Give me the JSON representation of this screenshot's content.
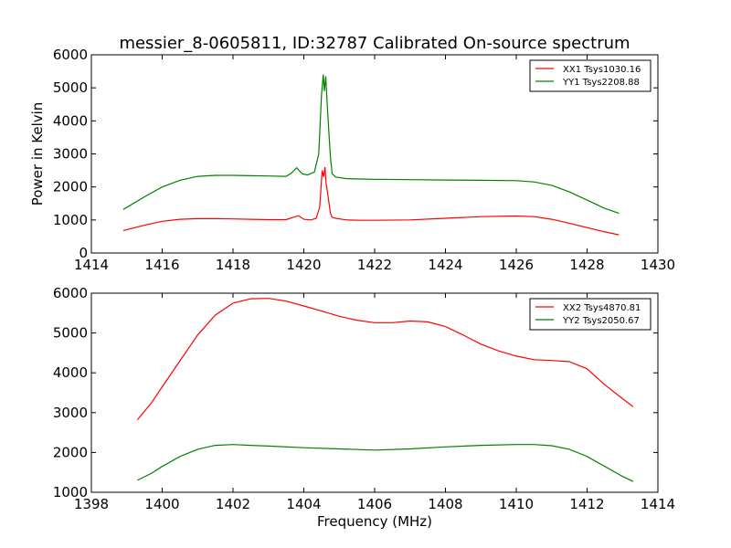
{
  "title": "messier_8-0605811, ID:32787 Calibrated On-source spectrum",
  "chart_data": [
    {
      "type": "line",
      "ylabel": "Power in Kelvin",
      "xlabel": "",
      "xlim": [
        1414,
        1430
      ],
      "ylim": [
        0,
        6000
      ],
      "xticks": [
        "1414",
        "1416",
        "1418",
        "1420",
        "1422",
        "1424",
        "1426",
        "1428",
        "1430"
      ],
      "yticks": [
        "0",
        "1000",
        "2000",
        "3000",
        "4000",
        "5000",
        "6000"
      ],
      "legend_position": "top-right",
      "series": [
        {
          "name": "XX1 Tsys1030.16",
          "color": "#ff0000",
          "x": [
            1414.9,
            1415.5,
            1416.0,
            1416.5,
            1417.0,
            1417.5,
            1418.0,
            1418.5,
            1419.0,
            1419.5,
            1419.7,
            1419.85,
            1420.0,
            1420.2,
            1420.35,
            1420.45,
            1420.52,
            1420.56,
            1420.6,
            1420.63,
            1420.66,
            1420.7,
            1420.75,
            1420.8,
            1420.9,
            1421.2,
            1421.6,
            1422.0,
            1423.0,
            1424.0,
            1425.0,
            1426.0,
            1426.5,
            1427.0,
            1427.5,
            1428.0,
            1428.5,
            1428.9
          ],
          "y": [
            680,
            840,
            960,
            1020,
            1040,
            1040,
            1030,
            1020,
            1010,
            1010,
            1080,
            1130,
            1020,
            1000,
            1050,
            1400,
            2500,
            2300,
            2600,
            2100,
            1900,
            1600,
            1200,
            1080,
            1050,
            1000,
            990,
            990,
            1000,
            1050,
            1100,
            1120,
            1100,
            1020,
            900,
            770,
            640,
            550
          ]
        },
        {
          "name": "YY1 Tsys2208.88",
          "color": "#008000",
          "x": [
            1414.9,
            1415.5,
            1416.0,
            1416.5,
            1417.0,
            1417.5,
            1418.0,
            1418.5,
            1419.0,
            1419.5,
            1419.65,
            1419.8,
            1419.95,
            1420.1,
            1420.3,
            1420.42,
            1420.5,
            1420.55,
            1420.58,
            1420.62,
            1420.66,
            1420.7,
            1420.75,
            1420.8,
            1420.9,
            1421.2,
            1421.6,
            1422.0,
            1423.0,
            1424.0,
            1425.0,
            1426.0,
            1426.5,
            1427.0,
            1427.5,
            1428.0,
            1428.5,
            1428.9
          ],
          "y": [
            1320,
            1700,
            2000,
            2200,
            2320,
            2350,
            2350,
            2340,
            2330,
            2320,
            2420,
            2580,
            2400,
            2360,
            2450,
            3000,
            4800,
            5400,
            4900,
            5350,
            4500,
            3800,
            2900,
            2400,
            2300,
            2250,
            2240,
            2230,
            2220,
            2210,
            2200,
            2190,
            2150,
            2050,
            1850,
            1600,
            1350,
            1200
          ]
        }
      ]
    },
    {
      "type": "line",
      "ylabel": "",
      "xlabel": "Frequency (MHz)",
      "xlim": [
        1398,
        1414
      ],
      "ylim": [
        1000,
        6000
      ],
      "xticks": [
        "1398",
        "1400",
        "1402",
        "1404",
        "1406",
        "1408",
        "1410",
        "1412",
        "1414"
      ],
      "yticks": [
        "1000",
        "2000",
        "3000",
        "4000",
        "5000",
        "6000"
      ],
      "legend_position": "top-right",
      "series": [
        {
          "name": "XX2 Tsys4870.81",
          "color": "#ff0000",
          "x": [
            1399.3,
            1399.7,
            1400.0,
            1400.5,
            1401.0,
            1401.5,
            1402.0,
            1402.5,
            1403.0,
            1403.5,
            1404.0,
            1404.5,
            1405.0,
            1405.5,
            1406.0,
            1406.5,
            1407.0,
            1407.5,
            1408.0,
            1408.5,
            1409.0,
            1409.5,
            1410.0,
            1410.5,
            1411.0,
            1411.5,
            1412.0,
            1412.5,
            1413.0,
            1413.3
          ],
          "y": [
            2820,
            3250,
            3650,
            4300,
            4950,
            5450,
            5750,
            5860,
            5870,
            5800,
            5680,
            5550,
            5420,
            5320,
            5260,
            5260,
            5300,
            5280,
            5160,
            4950,
            4720,
            4550,
            4420,
            4330,
            4310,
            4280,
            4100,
            3700,
            3350,
            3150
          ]
        },
        {
          "name": "YY2 Tsys2050.67",
          "color": "#008000",
          "x": [
            1399.3,
            1399.7,
            1400.0,
            1400.5,
            1401.0,
            1401.5,
            1402.0,
            1402.5,
            1403.0,
            1404.0,
            1405.0,
            1406.0,
            1407.0,
            1408.0,
            1409.0,
            1410.0,
            1410.5,
            1411.0,
            1411.5,
            1412.0,
            1412.5,
            1413.0,
            1413.3
          ],
          "y": [
            1300,
            1480,
            1650,
            1900,
            2080,
            2180,
            2200,
            2180,
            2160,
            2120,
            2090,
            2060,
            2090,
            2140,
            2180,
            2200,
            2200,
            2170,
            2080,
            1900,
            1650,
            1400,
            1270
          ]
        }
      ]
    }
  ]
}
